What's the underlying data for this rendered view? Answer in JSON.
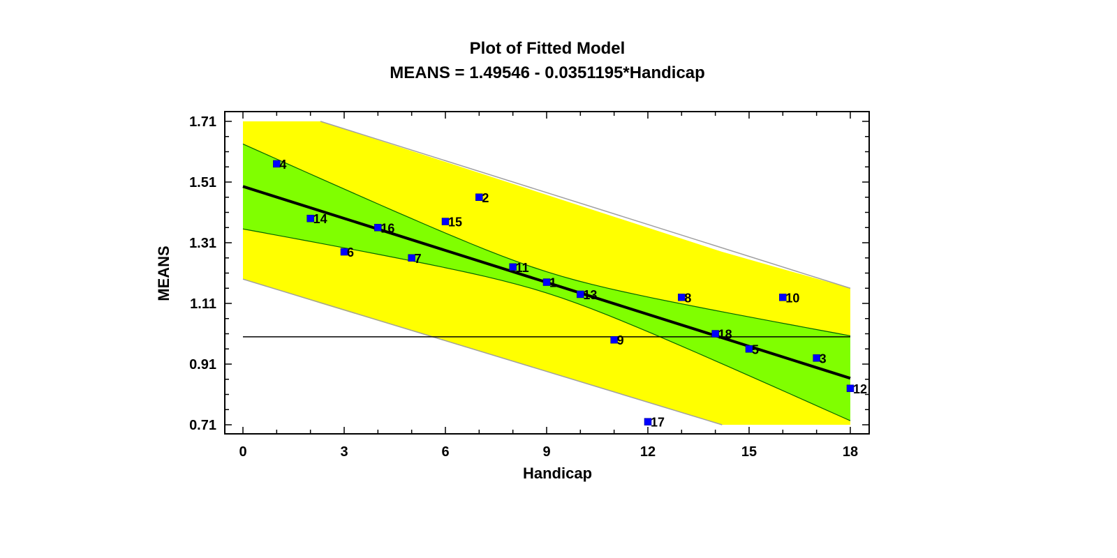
{
  "chart_data": {
    "type": "scatter",
    "title": "Plot of Fitted Model",
    "subtitle": "MEANS = 1.49546 - 0.0351195*Handicap",
    "xlabel": "Handicap",
    "ylabel": "MEANS",
    "xlim": [
      0,
      18
    ],
    "ylim": [
      0.71,
      1.71
    ],
    "x_ticks": [
      "0",
      "3",
      "6",
      "9",
      "12",
      "15",
      "18"
    ],
    "y_ticks": [
      "0.71",
      "0.91",
      "1.11",
      "1.31",
      "1.51",
      "1.71"
    ],
    "fit": {
      "intercept": 1.49546,
      "slope": -0.0351195
    },
    "reference_line_y": 1.0,
    "confidence_band": {
      "x": [
        0,
        18
      ],
      "upper": [
        1.64,
        0.98
      ],
      "lower": [
        1.36,
        0.73
      ]
    },
    "prediction_band": {
      "x": [
        0,
        2.3,
        14.2,
        18
      ],
      "upper": [
        1.71,
        1.71,
        1.28,
        1.16
      ],
      "lower": [
        1.19,
        1.11,
        0.71,
        0.71
      ]
    },
    "points": [
      {
        "label": "4",
        "x": 1,
        "y": 1.57
      },
      {
        "label": "14",
        "x": 2,
        "y": 1.39
      },
      {
        "label": "6",
        "x": 3,
        "y": 1.28
      },
      {
        "label": "16",
        "x": 4,
        "y": 1.36
      },
      {
        "label": "7",
        "x": 5,
        "y": 1.26
      },
      {
        "label": "15",
        "x": 6,
        "y": 1.38
      },
      {
        "label": "2",
        "x": 7,
        "y": 1.46
      },
      {
        "label": "11",
        "x": 8,
        "y": 1.23
      },
      {
        "label": "1",
        "x": 9,
        "y": 1.18
      },
      {
        "label": "13",
        "x": 10,
        "y": 1.14
      },
      {
        "label": "9",
        "x": 11,
        "y": 0.99
      },
      {
        "label": "17",
        "x": 12,
        "y": 0.72
      },
      {
        "label": "8",
        "x": 13,
        "y": 1.13
      },
      {
        "label": "18",
        "x": 14,
        "y": 1.01
      },
      {
        "label": "5",
        "x": 15,
        "y": 0.96
      },
      {
        "label": "10",
        "x": 16,
        "y": 1.13
      },
      {
        "label": "3",
        "x": 17,
        "y": 0.93
      },
      {
        "label": "12",
        "x": 18,
        "y": 0.83
      }
    ],
    "colors": {
      "prediction_band": "#ffff00",
      "confidence_band": "#80ff00",
      "band_edge_prediction": "#a0a0a0",
      "band_edge_confidence": "#006400",
      "fit_line": "#000000",
      "points": "#0000ff"
    }
  }
}
